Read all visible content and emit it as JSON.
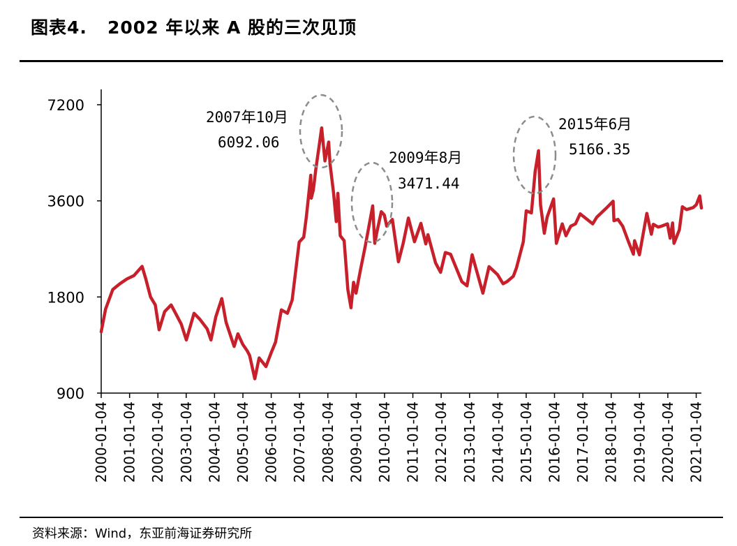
{
  "header": {
    "title": "图表4.   2002 年以来 A 股的三次见顶"
  },
  "footer": {
    "source": "资料来源：Wind，东亚前海证券研究所"
  },
  "colors": {
    "series": "#c8202b",
    "ellipse": "#8c8c8c",
    "axis": "#000000"
  },
  "chart_data": {
    "type": "line",
    "scale": "log",
    "y_ticks": [
      7200,
      3600,
      1800,
      900
    ],
    "ylim": [
      900,
      7200
    ],
    "x_ticks": [
      "2000-01-04",
      "2001-01-04",
      "2002-01-04",
      "2003-01-04",
      "2004-01-04",
      "2005-01-04",
      "2006-01-04",
      "2007-01-04",
      "2008-01-04",
      "2009-01-04",
      "2010-01-04",
      "2011-01-04",
      "2012-01-04",
      "2013-01-04",
      "2014-01-04",
      "2015-01-04",
      "2016-01-04",
      "2017-01-04",
      "2018-01-04",
      "2019-01-04",
      "2020-01-04",
      "2021-01-04"
    ],
    "series": [
      {
        "values": [
          [
            "2000-01-04",
            1400
          ],
          [
            "2000-03-01",
            1650
          ],
          [
            "2000-06-01",
            1900
          ],
          [
            "2000-09-01",
            1980
          ],
          [
            "2000-12-01",
            2050
          ],
          [
            "2001-03-01",
            2100
          ],
          [
            "2001-06-14",
            2245
          ],
          [
            "2001-08-01",
            2050
          ],
          [
            "2001-10-01",
            1800
          ],
          [
            "2001-12-01",
            1700
          ],
          [
            "2002-01-20",
            1420
          ],
          [
            "2002-04-01",
            1620
          ],
          [
            "2002-06-24",
            1700
          ],
          [
            "2002-09-01",
            1580
          ],
          [
            "2002-11-01",
            1480
          ],
          [
            "2003-01-06",
            1320
          ],
          [
            "2003-04-15",
            1600
          ],
          [
            "2003-07-01",
            1530
          ],
          [
            "2003-10-01",
            1430
          ],
          [
            "2003-11-19",
            1320
          ],
          [
            "2004-01-20",
            1560
          ],
          [
            "2004-04-07",
            1780
          ],
          [
            "2004-06-01",
            1500
          ],
          [
            "2004-09-13",
            1260
          ],
          [
            "2004-11-01",
            1380
          ],
          [
            "2005-01-01",
            1280
          ],
          [
            "2005-03-01",
            1220
          ],
          [
            "2005-04-01",
            1180
          ],
          [
            "2005-06-06",
            998
          ],
          [
            "2005-08-01",
            1160
          ],
          [
            "2005-10-28",
            1090
          ],
          [
            "2006-01-01",
            1200
          ],
          [
            "2006-03-01",
            1300
          ],
          [
            "2006-05-15",
            1640
          ],
          [
            "2006-08-01",
            1600
          ],
          [
            "2006-10-01",
            1760
          ],
          [
            "2006-12-31",
            2675
          ],
          [
            "2007-02-27",
            2770
          ],
          [
            "2007-04-01",
            3200
          ],
          [
            "2007-05-29",
            4330
          ],
          [
            "2007-06-04",
            3670
          ],
          [
            "2007-07-01",
            3900
          ],
          [
            "2007-08-01",
            4500
          ],
          [
            "2007-10-16",
            6092
          ],
          [
            "2007-11-28",
            4800
          ],
          [
            "2008-01-14",
            5500
          ],
          [
            "2008-02-01",
            4700
          ],
          [
            "2008-03-18",
            3800
          ],
          [
            "2008-04-21",
            3100
          ],
          [
            "2008-05-12",
            3800
          ],
          [
            "2008-06-12",
            2800
          ],
          [
            "2008-08-01",
            2700
          ],
          [
            "2008-09-18",
            1900
          ],
          [
            "2008-10-28",
            1665
          ],
          [
            "2008-12-01",
            2000
          ],
          [
            "2009-01-01",
            1850
          ],
          [
            "2009-03-01",
            2200
          ],
          [
            "2009-05-01",
            2600
          ],
          [
            "2009-08-04",
            3471
          ],
          [
            "2009-08-31",
            2650
          ],
          [
            "2009-10-01",
            2900
          ],
          [
            "2009-11-23",
            3330
          ],
          [
            "2010-01-01",
            3250
          ],
          [
            "2010-02-01",
            3000
          ],
          [
            "2010-04-15",
            3150
          ],
          [
            "2010-07-02",
            2320
          ],
          [
            "2010-09-01",
            2650
          ],
          [
            "2010-11-08",
            3180
          ],
          [
            "2011-01-25",
            2680
          ],
          [
            "2011-04-18",
            3060
          ],
          [
            "2011-06-20",
            2640
          ],
          [
            "2011-07-18",
            2820
          ],
          [
            "2011-10-24",
            2300
          ],
          [
            "2011-12-28",
            2150
          ],
          [
            "2012-02-27",
            2480
          ],
          [
            "2012-05-04",
            2450
          ],
          [
            "2012-09-26",
            2010
          ],
          [
            "2012-12-03",
            1950
          ],
          [
            "2013-02-06",
            2440
          ],
          [
            "2013-06-25",
            1850
          ],
          [
            "2013-09-12",
            2240
          ],
          [
            "2013-12-31",
            2115
          ],
          [
            "2014-03-12",
            1980
          ],
          [
            "2014-05-01",
            2010
          ],
          [
            "2014-07-22",
            2090
          ],
          [
            "2014-09-01",
            2220
          ],
          [
            "2014-11-28",
            2680
          ],
          [
            "2015-01-05",
            3350
          ],
          [
            "2015-03-12",
            3300
          ],
          [
            "2015-04-30",
            4450
          ],
          [
            "2015-06-12",
            5166
          ],
          [
            "2015-07-08",
            3500
          ],
          [
            "2015-08-26",
            2850
          ],
          [
            "2015-10-01",
            3200
          ],
          [
            "2015-12-23",
            3650
          ],
          [
            "2016-01-28",
            2650
          ],
          [
            "2016-04-13",
            3050
          ],
          [
            "2016-05-31",
            2800
          ],
          [
            "2016-08-01",
            3000
          ],
          [
            "2016-10-01",
            3050
          ],
          [
            "2016-11-29",
            3280
          ],
          [
            "2017-05-11",
            3050
          ],
          [
            "2017-07-01",
            3200
          ],
          [
            "2017-11-14",
            3440
          ],
          [
            "2018-01-29",
            3590
          ],
          [
            "2018-02-09",
            3120
          ],
          [
            "2018-04-01",
            3150
          ],
          [
            "2018-06-01",
            3000
          ],
          [
            "2018-08-17",
            2670
          ],
          [
            "2018-10-18",
            2450
          ],
          [
            "2018-11-01",
            2700
          ],
          [
            "2019-01-03",
            2440
          ],
          [
            "2019-04-08",
            3290
          ],
          [
            "2019-06-06",
            2830
          ],
          [
            "2019-07-01",
            3040
          ],
          [
            "2019-09-01",
            2980
          ],
          [
            "2019-10-15",
            3000
          ],
          [
            "2019-12-31",
            3050
          ],
          [
            "2020-02-03",
            2750
          ],
          [
            "2020-03-05",
            3070
          ],
          [
            "2020-03-23",
            2650
          ],
          [
            "2020-06-01",
            2920
          ],
          [
            "2020-07-09",
            3450
          ],
          [
            "2020-09-01",
            3380
          ],
          [
            "2020-11-25",
            3430
          ],
          [
            "2021-01-04",
            3500
          ],
          [
            "2021-02-18",
            3730
          ],
          [
            "2021-03-12",
            3420
          ]
        ]
      }
    ],
    "annotations": [
      {
        "date": "2007年10月",
        "value": "6092.06"
      },
      {
        "date": "2009年8月",
        "value": "3471.44"
      },
      {
        "date": "2015年6月",
        "value": "5166.35"
      }
    ]
  }
}
